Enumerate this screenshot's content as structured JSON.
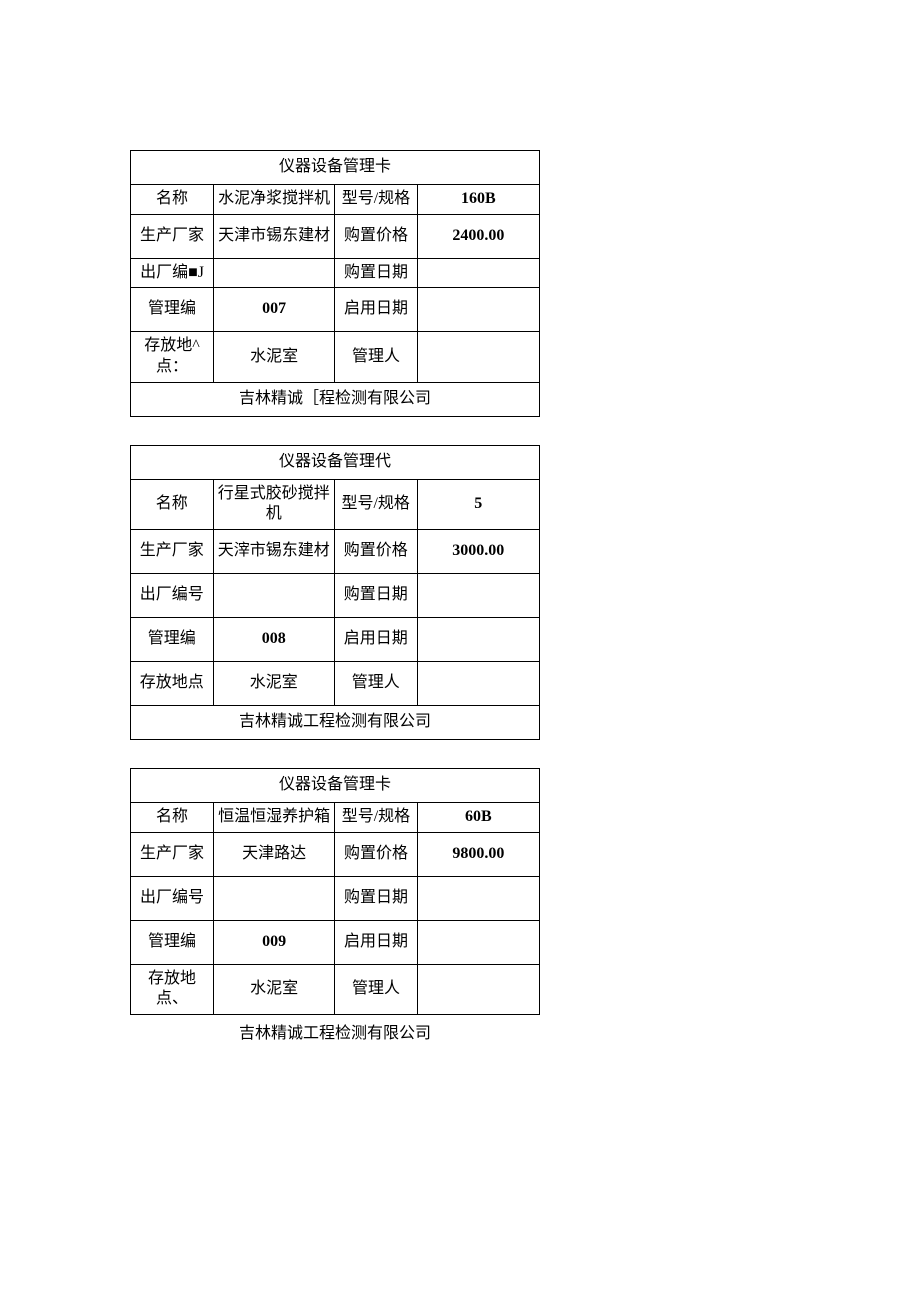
{
  "cards": [
    {
      "title": "仪器设备管理卡",
      "name_label": "名称",
      "name_value": "水泥净浆搅拌机",
      "model_label": "型号/规格",
      "model_value": "160B",
      "mfr_label": "生产厂家",
      "mfr_value": "天津市锡东建材",
      "price_label": "购置价格",
      "price_value": "2400.00",
      "factory_no_label": "出厂编■J",
      "factory_no_value": "",
      "purchase_date_label": "购置日期",
      "purchase_date_value": "",
      "mgmt_no_label": "管理编",
      "mgmt_no_value": "007",
      "enable_date_label": "启用日期",
      "enable_date_value": "",
      "location_label": "存放地^点：",
      "location_value": "水泥室",
      "manager_label": "管理人",
      "manager_value": "",
      "footer": "吉林精诚［程检测有限公司",
      "footer_inside": true
    },
    {
      "title": "仪器设备管理代",
      "name_label": "名称",
      "name_value": "行星式胶砂搅拌机",
      "model_label": "型号/规格",
      "model_value": "5",
      "mfr_label": "生产厂家",
      "mfr_value": "天滓市锡东建材",
      "price_label": "购置价格",
      "price_value": "3000.00",
      "factory_no_label": "出厂编号",
      "factory_no_value": "",
      "purchase_date_label": "购置日期",
      "purchase_date_value": "",
      "mgmt_no_label": "管理编",
      "mgmt_no_value": "008",
      "enable_date_label": "启用日期",
      "enable_date_value": "",
      "location_label": "存放地点",
      "location_value": "水泥室",
      "manager_label": "管理人",
      "manager_value": "",
      "footer": "吉林精诚工程检测有限公司",
      "footer_inside": true
    },
    {
      "title": "仪器设备管理卡",
      "name_label": "名称",
      "name_value": "恒温恒湿养护箱",
      "model_label": "型号/规格",
      "model_value": "60B",
      "mfr_label": "生产厂家",
      "mfr_value": "天津路达",
      "price_label": "购置价格",
      "price_value": "9800.00",
      "factory_no_label": "出厂编号",
      "factory_no_value": "",
      "purchase_date_label": "购置日期",
      "purchase_date_value": "",
      "mgmt_no_label": "管理编",
      "mgmt_no_value": "009",
      "enable_date_label": "启用日期",
      "enable_date_value": "",
      "location_label": "存放地点、",
      "location_value": "水泥室",
      "manager_label": "管理人",
      "manager_value": "",
      "footer": "吉林精诚工程检测有限公司",
      "footer_inside": false
    }
  ]
}
